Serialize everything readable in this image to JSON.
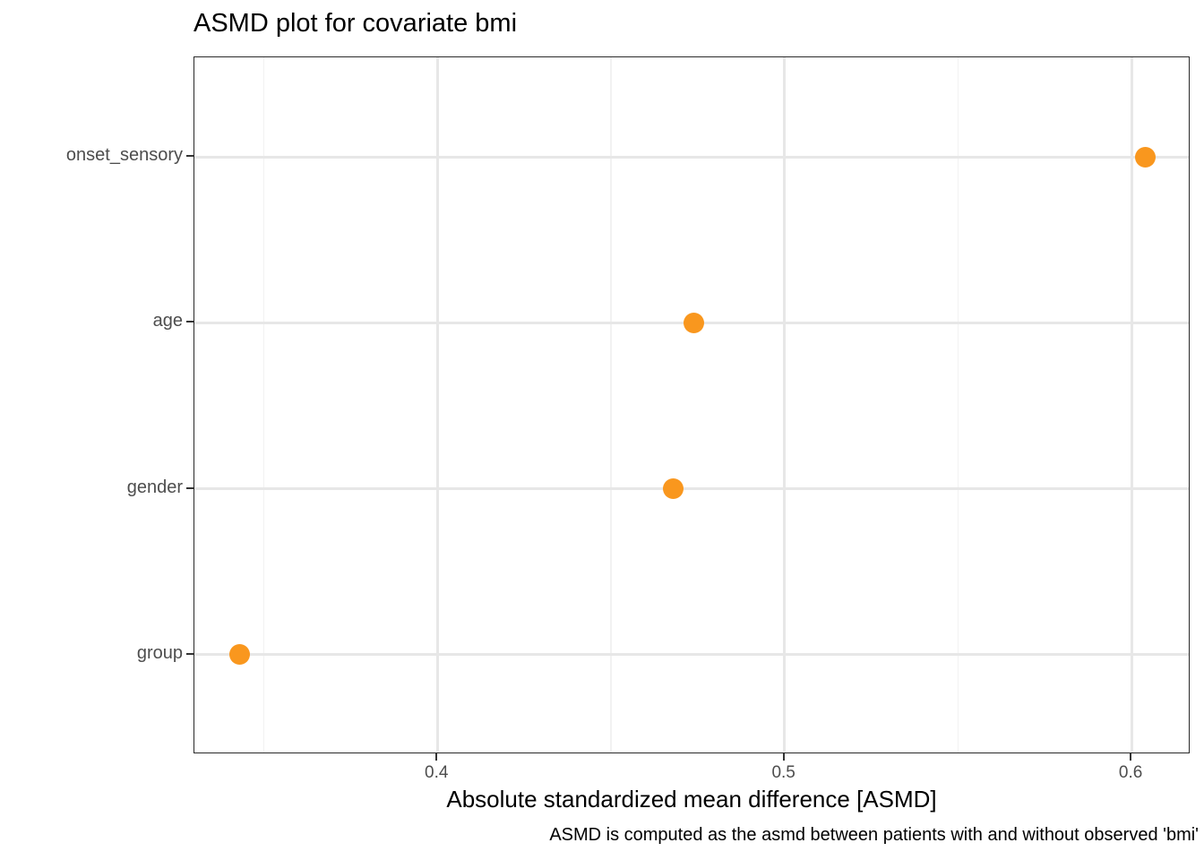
{
  "title": "ASMD plot for covariate bmi",
  "chart_data": {
    "type": "scatter",
    "subtype": "horizontal-dot-plot",
    "title": "ASMD plot for covariate bmi",
    "categories": [
      "onset_sensory",
      "age",
      "gender",
      "group"
    ],
    "values": [
      0.604,
      0.474,
      0.468,
      0.343
    ],
    "xlabel": "Absolute standardized mean difference [ASMD]",
    "ylabel": "",
    "caption": "ASMD is computed as the asmd between patients with and without observed 'bmi'",
    "xlim": [
      0.33,
      0.617
    ],
    "x_major_ticks": [
      0.4,
      0.5,
      0.6
    ],
    "x_minor_gridlines": [
      0.35,
      0.45,
      0.55
    ],
    "grid": "major-x, minor-x, major-y",
    "legend_position": "none",
    "point_color": "#f9971e"
  },
  "colors": {
    "point": "#f9971e",
    "grid_major": "#e7e7e7",
    "grid_minor": "#f2f2f2",
    "panel_border": "#2a2a2a",
    "tick_mark": "#333333",
    "axis_text": "#4d4d4d",
    "title_text": "#000000",
    "background": "#ffffff"
  }
}
